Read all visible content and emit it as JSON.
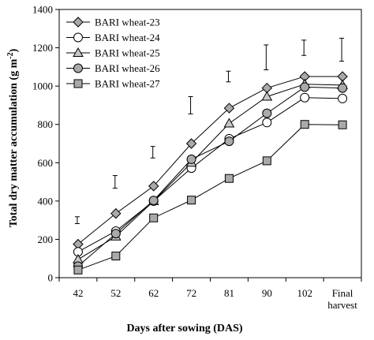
{
  "chart_data": {
    "type": "line",
    "title": "",
    "xlabel": "Days after sowing (DAS)",
    "ylabel": "Total dry matter accumulation (g m",
    "ylabel_sup": "-2",
    "ylabel_close": ")",
    "categories": [
      "42",
      "52",
      "62",
      "72",
      "81",
      "90",
      "102",
      "Final harvest"
    ],
    "category_lines": [
      [
        "42"
      ],
      [
        "52"
      ],
      [
        "62"
      ],
      [
        "72"
      ],
      [
        "81"
      ],
      [
        "90"
      ],
      [
        "102"
      ],
      [
        "Final",
        "harvest"
      ]
    ],
    "ylim": [
      0,
      1400
    ],
    "yticks": [
      0,
      200,
      400,
      600,
      800,
      1000,
      1200,
      1400
    ],
    "grid": false,
    "legend_position": "top-left",
    "series": [
      {
        "name": "BARI wheat-23",
        "marker": "diamond",
        "fill": "#a9a9a9",
        "values": [
          175,
          335,
          478,
          700,
          885,
          990,
          1050,
          1050
        ]
      },
      {
        "name": "BARI wheat-24",
        "marker": "circle",
        "fill": "#ffffff",
        "values": [
          135,
          243,
          400,
          572,
          725,
          810,
          940,
          935
        ]
      },
      {
        "name": "BARI wheat-25",
        "marker": "triangle",
        "fill": "#c8c8c8",
        "values": [
          95,
          215,
          400,
          600,
          805,
          945,
          1010,
          1005
        ]
      },
      {
        "name": "BARI wheat-26",
        "marker": "circle",
        "fill": "#a9a9a9",
        "values": [
          60,
          230,
          403,
          618,
          712,
          858,
          995,
          990
        ]
      },
      {
        "name": "BARI wheat-27",
        "marker": "square",
        "fill": "#a9a9a9",
        "values": [
          40,
          113,
          312,
          405,
          518,
          610,
          800,
          798
        ]
      }
    ],
    "error_bars": [
      {
        "category": "42",
        "low": 282,
        "high": 318
      },
      {
        "category": "52",
        "low": 467,
        "high": 533
      },
      {
        "category": "62",
        "low": 625,
        "high": 685
      },
      {
        "category": "72",
        "low": 855,
        "high": 945
      },
      {
        "category": "81",
        "low": 1022,
        "high": 1078
      },
      {
        "category": "90",
        "low": 1085,
        "high": 1215
      },
      {
        "category": "102",
        "low": 1160,
        "high": 1240
      },
      {
        "category": "Final harvest",
        "low": 1130,
        "high": 1250
      }
    ],
    "colors": {
      "line": "#000000",
      "marker_stroke": "#000000",
      "axis": "#000000"
    }
  }
}
